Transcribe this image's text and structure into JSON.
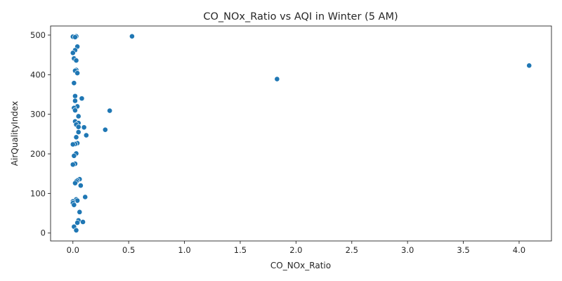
{
  "chart_data": {
    "type": "scatter",
    "title": "CO_NOx_Ratio vs AQI in Winter (5 AM)",
    "xlabel": "CO_NOx_Ratio",
    "ylabel": "AirQualityIndex",
    "xlim": [
      -0.2,
      4.29
    ],
    "ylim": [
      -20,
      523
    ],
    "xticks": [
      0.0,
      0.5,
      1.0,
      1.5,
      2.0,
      2.5,
      3.0,
      3.5,
      4.0
    ],
    "xtick_labels": [
      "0.0",
      "0.5",
      "1.0",
      "1.5",
      "2.0",
      "2.5",
      "3.0",
      "3.5",
      "4.0"
    ],
    "yticks": [
      0,
      100,
      200,
      300,
      400,
      500
    ],
    "ytick_labels": [
      "0",
      "100",
      "200",
      "300",
      "400",
      "500"
    ],
    "grid": false,
    "point_color": "#1f77b4",
    "points": [
      {
        "x": 0.0,
        "y": 496
      },
      {
        "x": 0.03,
        "y": 497
      },
      {
        "x": 0.02,
        "y": 495
      },
      {
        "x": 0.53,
        "y": 497
      },
      {
        "x": 0.04,
        "y": 471
      },
      {
        "x": 0.02,
        "y": 462
      },
      {
        "x": 0.0,
        "y": 455
      },
      {
        "x": 0.01,
        "y": 441
      },
      {
        "x": 0.03,
        "y": 436
      },
      {
        "x": 0.03,
        "y": 412
      },
      {
        "x": 0.02,
        "y": 410
      },
      {
        "x": 0.04,
        "y": 404
      },
      {
        "x": 0.01,
        "y": 379
      },
      {
        "x": 4.09,
        "y": 423
      },
      {
        "x": 1.83,
        "y": 389
      },
      {
        "x": 0.02,
        "y": 346
      },
      {
        "x": 0.08,
        "y": 340
      },
      {
        "x": 0.02,
        "y": 334
      },
      {
        "x": 0.04,
        "y": 320
      },
      {
        "x": 0.01,
        "y": 316
      },
      {
        "x": 0.02,
        "y": 310
      },
      {
        "x": 0.33,
        "y": 309
      },
      {
        "x": 0.05,
        "y": 295
      },
      {
        "x": 0.02,
        "y": 282
      },
      {
        "x": 0.05,
        "y": 278
      },
      {
        "x": 0.03,
        "y": 274
      },
      {
        "x": 0.05,
        "y": 268
      },
      {
        "x": 0.1,
        "y": 267
      },
      {
        "x": 0.29,
        "y": 261
      },
      {
        "x": 0.05,
        "y": 255
      },
      {
        "x": 0.12,
        "y": 247
      },
      {
        "x": 0.03,
        "y": 242
      },
      {
        "x": 0.04,
        "y": 227
      },
      {
        "x": 0.02,
        "y": 225
      },
      {
        "x": 0.0,
        "y": 224
      },
      {
        "x": 0.03,
        "y": 201
      },
      {
        "x": 0.01,
        "y": 195
      },
      {
        "x": 0.02,
        "y": 175
      },
      {
        "x": 0.0,
        "y": 173
      },
      {
        "x": 0.06,
        "y": 136
      },
      {
        "x": 0.04,
        "y": 133
      },
      {
        "x": 0.03,
        "y": 130
      },
      {
        "x": 0.02,
        "y": 126
      },
      {
        "x": 0.07,
        "y": 120
      },
      {
        "x": 0.11,
        "y": 91
      },
      {
        "x": 0.03,
        "y": 85
      },
      {
        "x": 0.04,
        "y": 82
      },
      {
        "x": 0.0,
        "y": 80
      },
      {
        "x": 0.0,
        "y": 76
      },
      {
        "x": 0.01,
        "y": 71
      },
      {
        "x": 0.06,
        "y": 53
      },
      {
        "x": 0.05,
        "y": 32
      },
      {
        "x": 0.09,
        "y": 28
      },
      {
        "x": 0.04,
        "y": 26
      },
      {
        "x": 0.01,
        "y": 16
      },
      {
        "x": 0.03,
        "y": 7
      }
    ]
  }
}
